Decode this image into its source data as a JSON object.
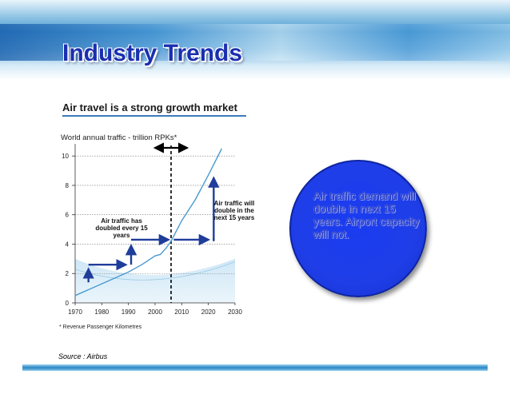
{
  "slide": {
    "title": "Industry Trends",
    "source": "Source : Airbus",
    "circle_text": "Air traffic demand will double in next 15 years. Airport capacity will not."
  },
  "chart_data": {
    "type": "line",
    "title": "Air travel is a strong growth market",
    "subtitle": "World annual traffic - trillion RPKs*",
    "footnote": "* Revenue Passenger Kilometres",
    "x_ticks": [
      1970,
      1980,
      1990,
      2000,
      2010,
      2020,
      2030
    ],
    "y_ticks": [
      0,
      2,
      4,
      6,
      8,
      10
    ],
    "xlim": [
      1970,
      2030
    ],
    "ylim": [
      0,
      10.5
    ],
    "grid": "horizontal dotted",
    "forecast_start": 2006,
    "series": [
      {
        "x": [
          1970,
          1975,
          1980,
          1985,
          1990,
          1995,
          2000,
          2002,
          2004,
          2006,
          2010,
          2015,
          2020,
          2025
        ],
        "values": [
          0.5,
          0.9,
          1.3,
          1.7,
          2.1,
          2.6,
          3.2,
          3.3,
          3.7,
          4.2,
          5.6,
          7.0,
          8.7,
          10.5
        ]
      }
    ],
    "annotations": {
      "left": "Air traffic has doubled every 15 years",
      "right": "Air traffic will double in the next 15 years"
    }
  }
}
